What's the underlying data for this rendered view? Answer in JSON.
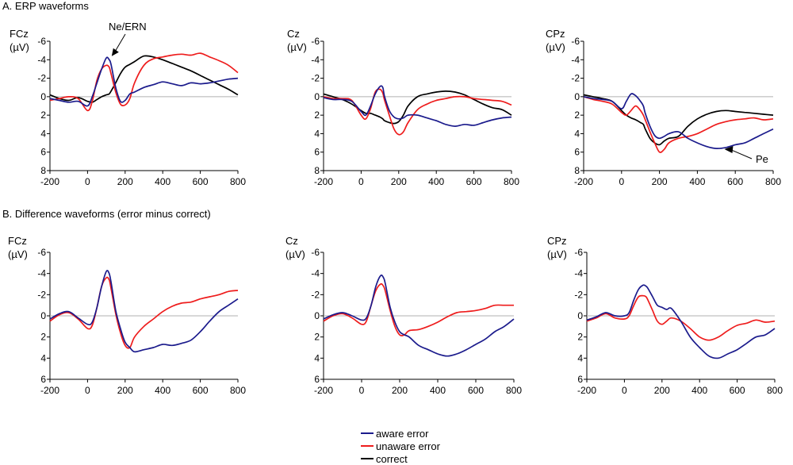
{
  "sections": {
    "a_title": "A. ERP waveforms",
    "b_title": "B. Difference waveforms (error minus correct)"
  },
  "unit_label": "(µV)",
  "colors": {
    "aware": "#1b1b8c",
    "unaware": "#ee1c1c",
    "correct": "#000000"
  },
  "legend": [
    {
      "key": "aware",
      "label": "aware error",
      "color": "#1b1b8c"
    },
    {
      "key": "unaware",
      "label": "unaware error",
      "color": "#ee1c1c"
    },
    {
      "key": "correct",
      "label": "correct",
      "color": "#000000"
    }
  ],
  "annotations": {
    "ne_ern": "Ne/ERN",
    "pe": "Pe"
  },
  "chart_data": [
    {
      "type": "line",
      "id": "A-FCz",
      "title": "FCz",
      "ylabel": "(µV)",
      "xlim": [
        -200,
        800
      ],
      "ylim": [
        -6,
        8
      ],
      "y_inverted": true,
      "xticks": [
        -200,
        0,
        200,
        400,
        600,
        800
      ],
      "yticks": [
        -6,
        -4,
        -2,
        0,
        2,
        4,
        6,
        8
      ],
      "x": [
        -200,
        -150,
        -100,
        -50,
        0,
        25,
        50,
        75,
        100,
        115,
        125,
        150,
        175,
        200,
        225,
        250,
        300,
        350,
        400,
        450,
        500,
        550,
        600,
        650,
        700,
        750,
        800
      ],
      "series": [
        {
          "name": "aware error",
          "key": "aware",
          "values": [
            0.2,
            0.4,
            0.6,
            0.5,
            1.0,
            0.0,
            -1.5,
            -3.0,
            -4.2,
            -4.0,
            -3.5,
            -1.0,
            0.5,
            0.4,
            -0.3,
            -0.5,
            -1.0,
            -1.3,
            -1.6,
            -1.4,
            -1.2,
            -1.5,
            -1.4,
            -1.5,
            -1.7,
            -1.9,
            -2.0
          ]
        },
        {
          "name": "unaware error",
          "key": "unaware",
          "values": [
            0.4,
            0.2,
            0.0,
            0.2,
            1.5,
            0.5,
            -1.8,
            -3.0,
            -3.4,
            -3.2,
            -2.5,
            -0.5,
            0.8,
            0.9,
            0.2,
            -1.5,
            -3.4,
            -4.1,
            -4.3,
            -4.5,
            -4.6,
            -4.5,
            -4.7,
            -4.3,
            -3.9,
            -3.4,
            -2.6
          ]
        },
        {
          "name": "correct",
          "key": "correct",
          "values": [
            -0.2,
            0.2,
            0.4,
            0.1,
            0.5,
            0.6,
            0.3,
            0.0,
            -0.2,
            -0.3,
            -0.6,
            -1.5,
            -2.5,
            -3.2,
            -3.5,
            -3.8,
            -4.4,
            -4.3,
            -4.0,
            -3.6,
            -3.2,
            -2.8,
            -2.3,
            -1.8,
            -1.3,
            -0.8,
            -0.2
          ]
        }
      ],
      "annotations": [
        {
          "text": "Ne/ERN",
          "x": 120,
          "y": -4.3
        }
      ]
    },
    {
      "type": "line",
      "id": "A-Cz",
      "title": "Cz",
      "ylabel": "(µV)",
      "xlim": [
        -200,
        800
      ],
      "ylim": [
        -6,
        8
      ],
      "y_inverted": true,
      "xticks": [
        -200,
        0,
        200,
        400,
        600,
        800
      ],
      "yticks": [
        -6,
        -4,
        -2,
        0,
        2,
        4,
        6,
        8
      ],
      "x": [
        -200,
        -150,
        -100,
        -50,
        0,
        25,
        50,
        75,
        100,
        115,
        125,
        150,
        175,
        200,
        225,
        250,
        300,
        350,
        400,
        450,
        500,
        550,
        600,
        650,
        700,
        750,
        800
      ],
      "series": [
        {
          "name": "aware error",
          "key": "aware",
          "values": [
            0.1,
            0.3,
            0.3,
            0.5,
            1.6,
            2.0,
            1.0,
            -0.3,
            -1.1,
            -1.0,
            0.0,
            1.5,
            2.2,
            2.4,
            2.3,
            2.0,
            2.0,
            2.3,
            2.6,
            3.0,
            3.2,
            3.0,
            3.1,
            2.8,
            2.5,
            2.3,
            2.2
          ]
        },
        {
          "name": "unaware error",
          "key": "unaware",
          "values": [
            0.0,
            0.2,
            0.2,
            0.4,
            2.0,
            2.4,
            1.3,
            -0.5,
            -0.8,
            -0.4,
            0.4,
            2.0,
            3.5,
            4.1,
            3.8,
            2.8,
            1.4,
            0.8,
            0.4,
            0.2,
            0.0,
            0.0,
            0.2,
            0.3,
            0.4,
            0.5,
            0.9
          ]
        },
        {
          "name": "correct",
          "key": "correct",
          "values": [
            -0.3,
            0.0,
            0.3,
            0.8,
            1.5,
            1.8,
            1.8,
            2.0,
            2.2,
            2.4,
            2.6,
            2.8,
            2.9,
            2.7,
            2.0,
            1.0,
            0.0,
            -0.3,
            -0.5,
            -0.6,
            -0.5,
            -0.2,
            0.3,
            0.8,
            1.2,
            1.4,
            2.0
          ]
        }
      ]
    },
    {
      "type": "line",
      "id": "A-CPz",
      "title": "CPz",
      "ylabel": "(µV)",
      "xlim": [
        -200,
        800
      ],
      "ylim": [
        -6,
        8
      ],
      "y_inverted": true,
      "xticks": [
        -200,
        0,
        200,
        400,
        600,
        800
      ],
      "yticks": [
        -6,
        -4,
        -2,
        0,
        2,
        4,
        6,
        8
      ],
      "x": [
        -200,
        -150,
        -100,
        -50,
        0,
        25,
        50,
        75,
        100,
        115,
        125,
        150,
        175,
        200,
        225,
        250,
        300,
        350,
        400,
        450,
        500,
        550,
        600,
        650,
        700,
        750,
        800
      ],
      "series": [
        {
          "name": "aware error",
          "key": "aware",
          "values": [
            0.0,
            0.2,
            0.3,
            0.5,
            1.3,
            0.5,
            -0.3,
            -0.1,
            0.5,
            1.0,
            1.8,
            3.2,
            4.2,
            4.5,
            4.3,
            4.0,
            3.8,
            4.5,
            5.0,
            5.4,
            5.6,
            5.5,
            5.2,
            5.0,
            4.5,
            4.0,
            3.5
          ]
        },
        {
          "name": "unaware error",
          "key": "unaware",
          "values": [
            0.0,
            0.3,
            0.5,
            0.8,
            1.7,
            2.0,
            1.5,
            1.0,
            1.5,
            2.0,
            2.5,
            3.8,
            5.0,
            6.0,
            5.7,
            5.0,
            4.5,
            4.3,
            4.0,
            3.5,
            3.0,
            2.7,
            2.5,
            2.4,
            2.3,
            2.5,
            2.4
          ]
        },
        {
          "name": "correct",
          "key": "correct",
          "values": [
            -0.2,
            0.0,
            0.2,
            0.5,
            1.5,
            2.0,
            2.3,
            2.5,
            2.8,
            3.0,
            3.5,
            4.5,
            5.0,
            5.2,
            4.8,
            4.5,
            4.3,
            3.2,
            2.4,
            1.9,
            1.6,
            1.5,
            1.6,
            1.7,
            1.8,
            1.9,
            2.0
          ]
        }
      ],
      "annotations": [
        {
          "text": "Pe",
          "x": 530,
          "y": 5.6
        }
      ]
    },
    {
      "type": "line",
      "id": "B-FCz",
      "title": "FCz",
      "ylabel": "(µV)",
      "xlim": [
        -200,
        800
      ],
      "ylim": [
        -6,
        6
      ],
      "y_inverted": true,
      "xticks": [
        -200,
        0,
        200,
        400,
        600,
        800
      ],
      "yticks": [
        -6,
        -4,
        -2,
        0,
        2,
        4,
        6
      ],
      "x": [
        -200,
        -150,
        -100,
        -50,
        0,
        25,
        50,
        75,
        100,
        115,
        125,
        150,
        175,
        200,
        225,
        250,
        300,
        350,
        400,
        450,
        500,
        550,
        600,
        650,
        700,
        750,
        800
      ],
      "series": [
        {
          "name": "aware error",
          "key": "aware",
          "values": [
            0.3,
            -0.2,
            -0.4,
            0.2,
            0.8,
            0.6,
            -0.8,
            -2.8,
            -4.2,
            -4.0,
            -3.2,
            -0.5,
            1.2,
            2.5,
            3.0,
            3.4,
            3.2,
            3.0,
            2.7,
            2.8,
            2.6,
            2.3,
            1.5,
            0.5,
            -0.4,
            -1.0,
            -1.6
          ]
        },
        {
          "name": "unaware error",
          "key": "unaware",
          "values": [
            0.5,
            -0.1,
            -0.3,
            0.3,
            1.2,
            0.9,
            -0.8,
            -2.8,
            -3.6,
            -3.4,
            -2.6,
            -0.2,
            1.6,
            2.8,
            3.0,
            2.0,
            1.0,
            0.3,
            -0.4,
            -0.9,
            -1.2,
            -1.3,
            -1.6,
            -1.8,
            -2.0,
            -2.3,
            -2.4
          ]
        }
      ]
    },
    {
      "type": "line",
      "id": "B-Cz",
      "title": "Cz",
      "ylabel": "(µV)",
      "xlim": [
        -200,
        800
      ],
      "ylim": [
        -6,
        6
      ],
      "y_inverted": true,
      "xticks": [
        -200,
        0,
        200,
        400,
        600,
        800
      ],
      "yticks": [
        -6,
        -4,
        -2,
        0,
        2,
        4,
        6
      ],
      "x": [
        -200,
        -150,
        -100,
        -50,
        0,
        25,
        50,
        75,
        100,
        115,
        125,
        150,
        175,
        200,
        225,
        250,
        300,
        350,
        400,
        450,
        500,
        550,
        600,
        650,
        700,
        750,
        800
      ],
      "series": [
        {
          "name": "aware error",
          "key": "aware",
          "values": [
            0.3,
            -0.1,
            -0.3,
            0.0,
            0.4,
            0.2,
            -1.0,
            -2.8,
            -3.8,
            -3.6,
            -3.0,
            -0.8,
            0.6,
            1.5,
            1.8,
            2.0,
            2.8,
            3.2,
            3.6,
            3.8,
            3.6,
            3.2,
            2.7,
            2.2,
            1.5,
            1.0,
            0.3
          ]
        },
        {
          "name": "unaware error",
          "key": "unaware",
          "values": [
            0.5,
            0.0,
            -0.2,
            0.2,
            0.8,
            0.5,
            -1.0,
            -2.4,
            -3.0,
            -2.8,
            -2.3,
            -0.5,
            1.0,
            1.8,
            1.8,
            1.4,
            1.3,
            1.0,
            0.6,
            0.1,
            -0.3,
            -0.4,
            -0.5,
            -0.7,
            -1.0,
            -1.0,
            -1.0
          ]
        }
      ]
    },
    {
      "type": "line",
      "id": "B-CPz",
      "title": "CPz",
      "ylabel": "(µV)",
      "xlim": [
        -200,
        800
      ],
      "ylim": [
        -6,
        6
      ],
      "y_inverted": true,
      "xticks": [
        -200,
        0,
        200,
        400,
        600,
        800
      ],
      "yticks": [
        -6,
        -4,
        -2,
        0,
        2,
        4,
        6
      ],
      "x": [
        -200,
        -150,
        -100,
        -50,
        0,
        25,
        50,
        75,
        100,
        115,
        125,
        150,
        175,
        200,
        225,
        250,
        300,
        350,
        400,
        450,
        500,
        550,
        600,
        650,
        700,
        750,
        800
      ],
      "series": [
        {
          "name": "aware error",
          "key": "aware",
          "values": [
            0.4,
            0.1,
            -0.3,
            0.0,
            0.0,
            -0.3,
            -1.5,
            -2.5,
            -2.9,
            -2.8,
            -2.6,
            -1.8,
            -1.0,
            -0.8,
            -0.6,
            -0.7,
            0.5,
            2.0,
            3.0,
            3.8,
            4.0,
            3.6,
            3.2,
            2.6,
            2.0,
            1.8,
            1.2
          ]
        },
        {
          "name": "unaware error",
          "key": "unaware",
          "values": [
            0.5,
            0.2,
            -0.2,
            0.2,
            0.3,
            0.0,
            -1.0,
            -1.8,
            -1.9,
            -1.8,
            -1.5,
            -0.5,
            0.5,
            0.8,
            0.5,
            0.2,
            0.5,
            1.2,
            2.0,
            2.3,
            2.0,
            1.4,
            0.9,
            0.7,
            0.4,
            0.6,
            0.5
          ]
        }
      ]
    }
  ]
}
